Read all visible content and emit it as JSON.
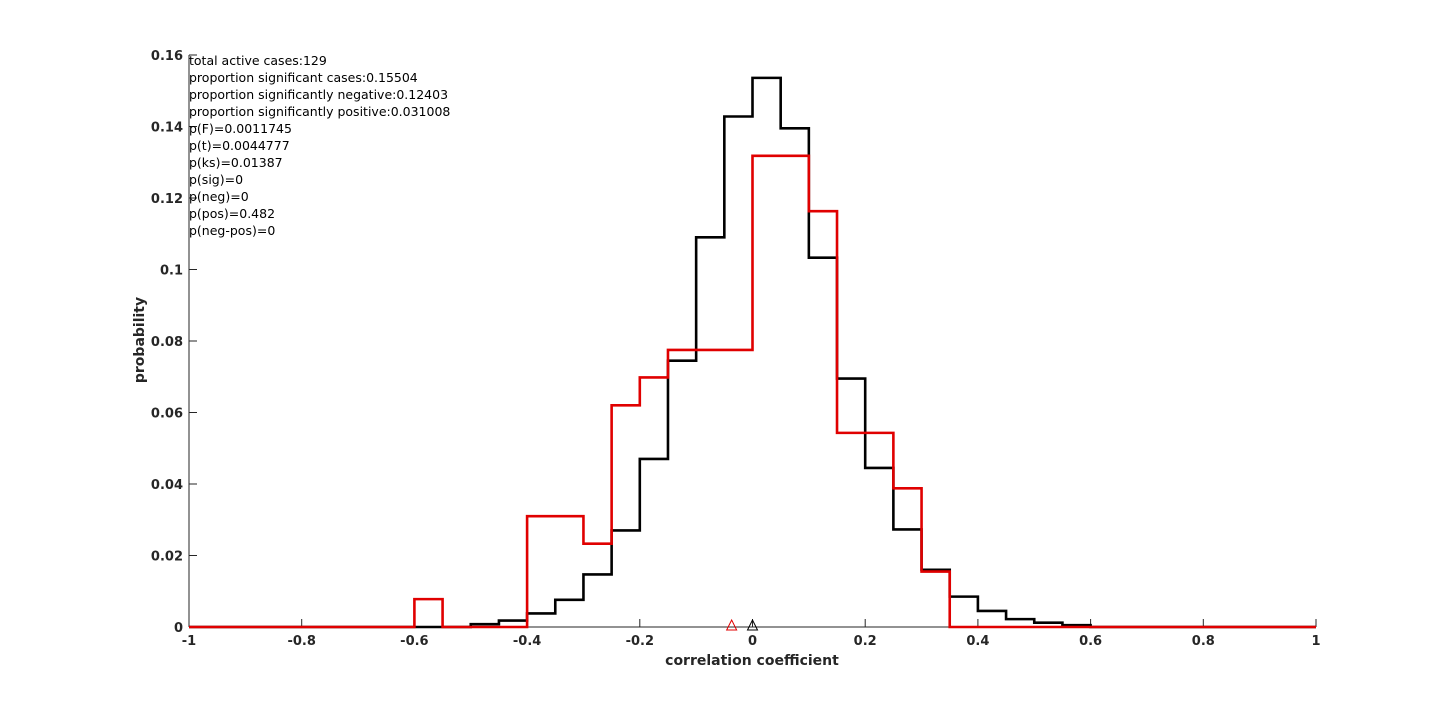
{
  "chart_data": {
    "type": "histogram-step",
    "xlabel": "correlation coefficient",
    "ylabel": "probability",
    "xlim": [
      -1,
      1
    ],
    "ylim": [
      0,
      0.16
    ],
    "x_ticks": [
      -1,
      -0.8,
      -0.6,
      -0.4,
      -0.2,
      0,
      0.2,
      0.4,
      0.6,
      0.8,
      1
    ],
    "x_tick_labels": [
      "-1",
      "-0.8",
      "-0.6",
      "-0.4",
      "-0.2",
      "0",
      "0.2",
      "0.4",
      "0.6",
      "0.8",
      "1"
    ],
    "y_ticks": [
      0,
      0.02,
      0.04,
      0.06,
      0.08,
      0.1,
      0.12,
      0.14,
      0.16
    ],
    "y_tick_labels": [
      "0",
      "0.02",
      "0.04",
      "0.06",
      "0.08",
      "0.1",
      "0.12",
      "0.14",
      "0.16"
    ],
    "grid": false,
    "bin_width": 0.05,
    "series": [
      {
        "color": "#000000",
        "bins": [
          [
            -0.55,
            0.0
          ],
          [
            -0.5,
            0.0008
          ],
          [
            -0.45,
            0.0018
          ],
          [
            -0.4,
            0.0038
          ],
          [
            -0.35,
            0.0076
          ],
          [
            -0.3,
            0.0147
          ],
          [
            -0.25,
            0.027
          ],
          [
            -0.2,
            0.047
          ],
          [
            -0.15,
            0.0745
          ],
          [
            -0.1,
            0.109
          ],
          [
            -0.05,
            0.1428
          ],
          [
            0.0,
            0.1536
          ],
          [
            0.05,
            0.1395
          ],
          [
            0.1,
            0.1033
          ],
          [
            0.15,
            0.0695
          ],
          [
            0.2,
            0.0445
          ],
          [
            0.25,
            0.0273
          ],
          [
            0.3,
            0.016
          ],
          [
            0.35,
            0.0085
          ],
          [
            0.4,
            0.0045
          ],
          [
            0.45,
            0.0022
          ],
          [
            0.5,
            0.0012
          ],
          [
            0.55,
            0.0005
          ]
        ],
        "marker_x": 0.0
      },
      {
        "color": "#e00000",
        "bins": [
          [
            -0.6,
            0.0078
          ],
          [
            -0.55,
            0.0
          ],
          [
            -0.5,
            0.0
          ],
          [
            -0.45,
            0.0
          ],
          [
            -0.4,
            0.031
          ],
          [
            -0.35,
            0.031
          ],
          [
            -0.3,
            0.0233
          ],
          [
            -0.25,
            0.062
          ],
          [
            -0.2,
            0.0698
          ],
          [
            -0.15,
            0.0775
          ],
          [
            -0.1,
            0.0775
          ],
          [
            -0.05,
            0.0775
          ],
          [
            0.0,
            0.1318
          ],
          [
            0.05,
            0.1318
          ],
          [
            0.1,
            0.1163
          ],
          [
            0.15,
            0.0543
          ],
          [
            0.2,
            0.0543
          ],
          [
            0.25,
            0.0388
          ],
          [
            0.3,
            0.0155
          ]
        ],
        "marker_x": -0.037
      }
    ],
    "annotations": [
      "total active cases:129",
      "proportion significant cases:0.15504",
      "proportion significantly negative:0.12403",
      "proportion significantly positive:0.031008",
      "p(F)=0.0011745",
      "p(t)=0.0044777",
      "p(ks)=0.01387",
      "p(sig)=0",
      "p(neg)=0",
      "p(pos)=0.482",
      "p(neg-pos)=0"
    ]
  }
}
